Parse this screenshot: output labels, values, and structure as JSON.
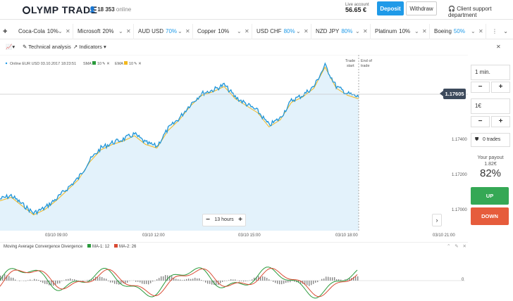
{
  "header": {
    "brand": "LYMP TRADE",
    "online_count": "18 353",
    "online_label": "online",
    "live_account_label": "Live account",
    "balance": "56.65 €",
    "deposit_label": "Deposit",
    "withdraw_label": "Withdraw",
    "support_label": "Client support department"
  },
  "tabs": [
    {
      "name": "Coca-Cola",
      "pct": "10%",
      "highlight": false
    },
    {
      "name": "Microsoft",
      "pct": "20%",
      "highlight": false
    },
    {
      "name": "AUD USD",
      "pct": "70%",
      "highlight": true
    },
    {
      "name": "Copper",
      "pct": "10%",
      "highlight": false
    },
    {
      "name": "USD CHF",
      "pct": "80%",
      "highlight": true
    },
    {
      "name": "NZD JPY",
      "pct": "80%",
      "highlight": true
    },
    {
      "name": "Platinum",
      "pct": "10%",
      "highlight": false
    },
    {
      "name": "Boeing",
      "pct": "50%",
      "highlight": true
    }
  ],
  "toolbar": {
    "technical_analysis": "Technical analysis",
    "indicators": "Indicators"
  },
  "chart": {
    "info": "Online EUR USD 03.10.2017 18:23:51",
    "sma_label": "SMA",
    "sma_period": "10",
    "ema_label": "EMA",
    "ema_period": "10",
    "trade_start": "Trade start",
    "end_of_trade": "End of trade",
    "current_price": "1.17605",
    "zoom_label": "13 hours",
    "colors": {
      "line": "#2196d8",
      "area": "#e3f2fb",
      "sma": "#2a9a3c",
      "ema": "#f2b81e"
    }
  },
  "chart_data": {
    "type": "line",
    "x_ticks": [
      "03/10 09:00",
      "03/10 12:00",
      "03/10 15:00",
      "03/10 18:00",
      "03/10 21:00"
    ],
    "y_ticks": [
      1.174,
      1.172,
      1.17
    ],
    "ylim": [
      1.1688,
      1.1788
    ],
    "x": [
      "07:40",
      "08:00",
      "08:20",
      "08:40",
      "09:00",
      "09:20",
      "09:40",
      "10:00",
      "10:20",
      "10:40",
      "11:00",
      "11:20",
      "11:40",
      "12:00",
      "12:20",
      "12:40",
      "13:00",
      "13:20",
      "13:40",
      "14:00",
      "14:20",
      "14:40",
      "15:00",
      "15:20",
      "15:40",
      "16:00",
      "16:20",
      "16:40",
      "17:00",
      "17:20",
      "17:40",
      "18:00",
      "18:20"
    ],
    "series": [
      {
        "values": [
          1.1706,
          1.1708,
          1.1703,
          1.1698,
          1.1701,
          1.1706,
          1.1712,
          1.1718,
          1.1728,
          1.1735,
          1.1738,
          1.174,
          1.1743,
          1.1738,
          1.1736,
          1.1746,
          1.1752,
          1.176,
          1.1766,
          1.1768,
          1.1771,
          1.1764,
          1.176,
          1.1756,
          1.1748,
          1.1752,
          1.1762,
          1.1765,
          1.177,
          1.1782,
          1.177,
          1.1766,
          1.1764
        ]
      }
    ]
  },
  "right_panel": {
    "duration": "1 min.",
    "amount": "1€",
    "trades": "0 trades",
    "payout_label": "Your payout",
    "payout_amount": "1.82€",
    "payout_pct": "82%",
    "up_label": "UP",
    "down_label": "DOWN"
  },
  "macd": {
    "title": "Moving Average Convergence Divergence",
    "ma1": "MA-1: 12",
    "ma2": "MA-2: 26",
    "zero_label": "0",
    "colors": {
      "ma1": "#2a9a3c",
      "ma2": "#d94a33",
      "hist": "#888888"
    }
  }
}
